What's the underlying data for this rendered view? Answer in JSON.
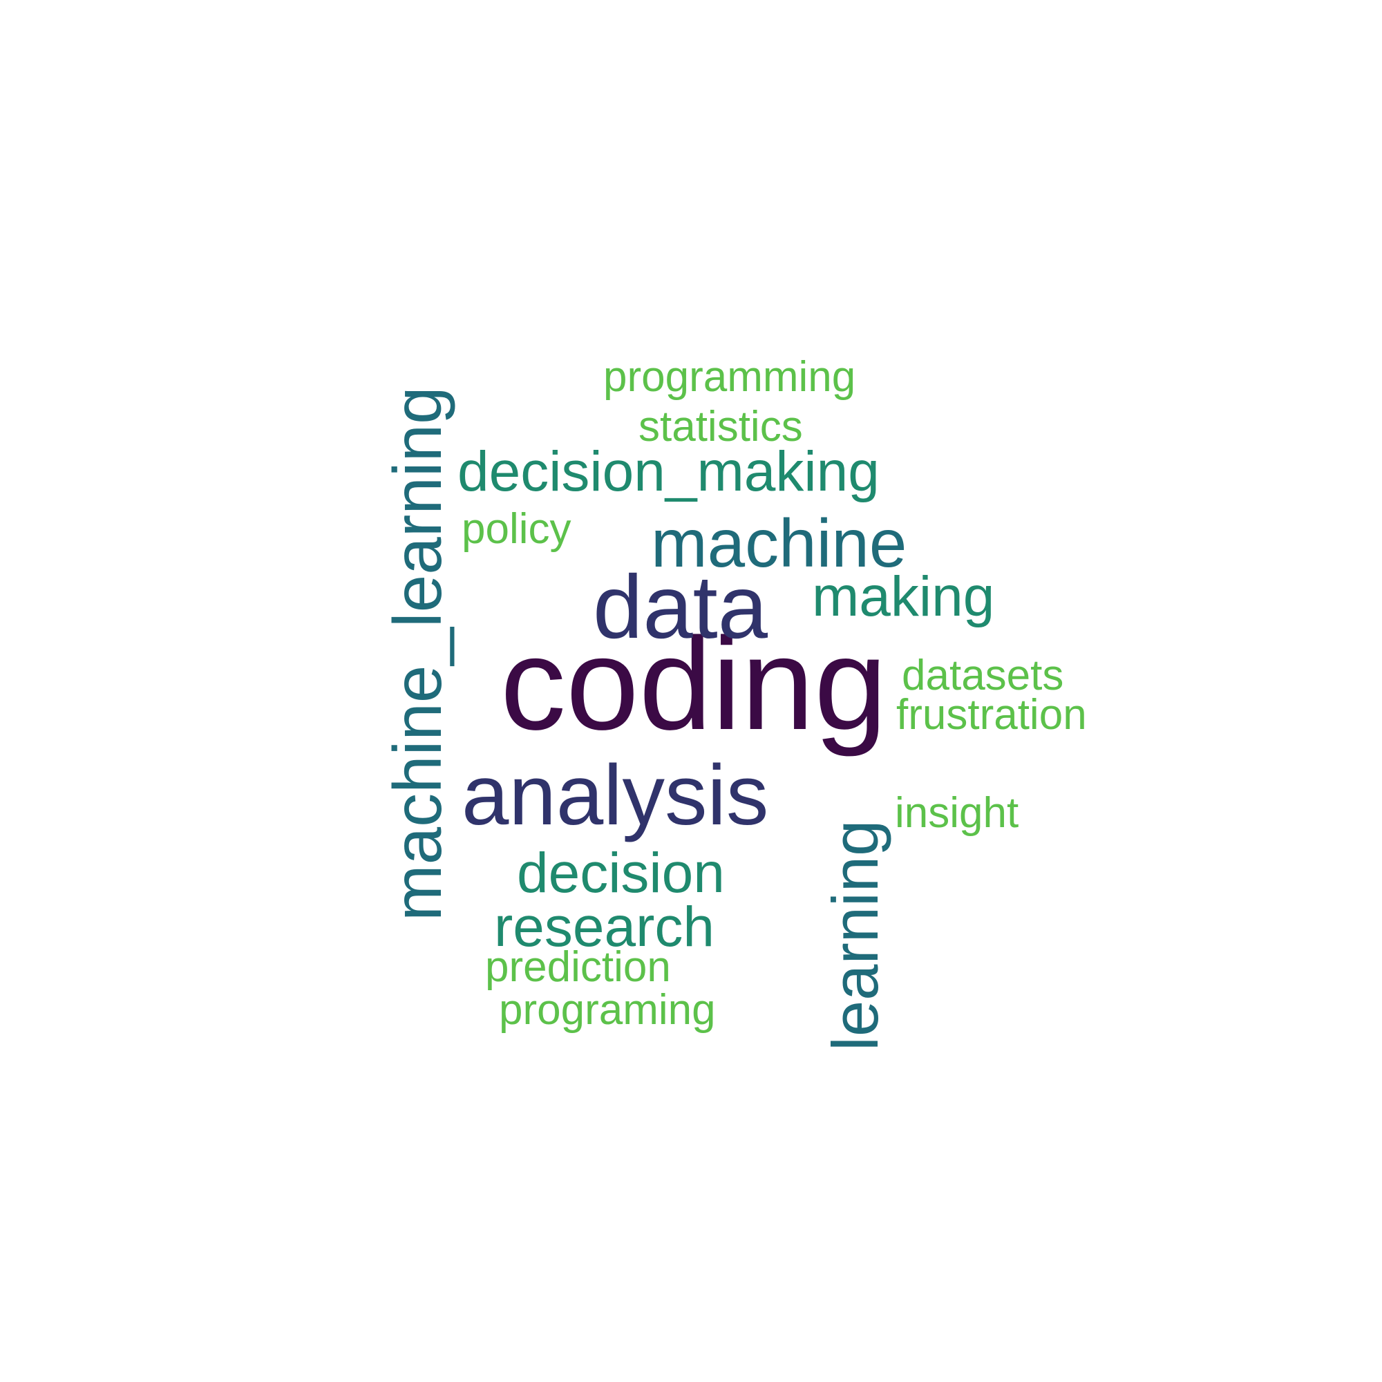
{
  "chart_data": {
    "type": "wordcloud",
    "words": [
      {
        "text": "coding",
        "color": "#3b0a45"
      },
      {
        "text": "data",
        "color": "#30336b"
      },
      {
        "text": "analysis",
        "color": "#30336b"
      },
      {
        "text": "machine_learning",
        "color": "#1f6b7a"
      },
      {
        "text": "learning",
        "color": "#1f6b7a"
      },
      {
        "text": "machine",
        "color": "#1f6b7a"
      },
      {
        "text": "decision_making",
        "color": "#1f8a6e"
      },
      {
        "text": "making",
        "color": "#1f8a6e"
      },
      {
        "text": "decision",
        "color": "#1f8a6e"
      },
      {
        "text": "research",
        "color": "#1f8a6e"
      },
      {
        "text": "programming",
        "color": "#5cc14a"
      },
      {
        "text": "statistics",
        "color": "#5cc14a"
      },
      {
        "text": "policy",
        "color": "#5cc14a"
      },
      {
        "text": "datasets",
        "color": "#5cc14a"
      },
      {
        "text": "frustration",
        "color": "#5cc14a"
      },
      {
        "text": "insight",
        "color": "#5cc14a"
      },
      {
        "text": "prediction",
        "color": "#5cc14a"
      },
      {
        "text": "programing",
        "color": "#5cc14a"
      }
    ]
  }
}
